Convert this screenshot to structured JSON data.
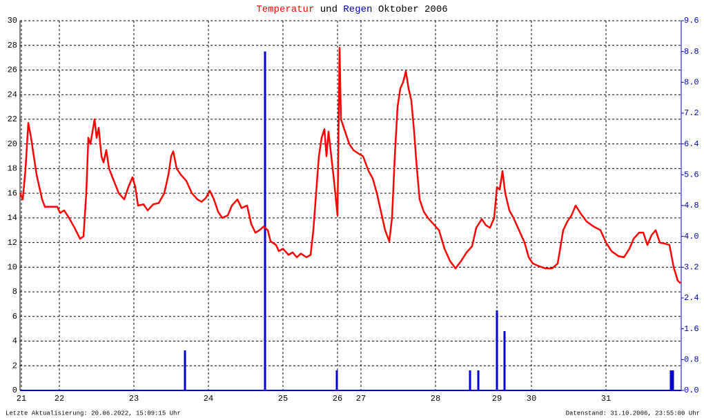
{
  "chart_data": {
    "type": "line_bar",
    "title_joiner": "und",
    "title_period": "Oktober 2006",
    "footer_left": "Letzte Aktualisierung: 20.06.2022, 15:09:15 Uhr",
    "footer_right": "Datenstand: 31.10.2006, 23:55:00 Uhr",
    "xlim": [
      0,
      239.5
    ],
    "xticks": [
      {
        "value": 0.5,
        "label": "21"
      },
      {
        "value": 14.25,
        "label": "22"
      },
      {
        "value": 41.25,
        "label": "23"
      },
      {
        "value": 68.25,
        "label": "24"
      },
      {
        "value": 95.25,
        "label": "25"
      },
      {
        "value": 115,
        "label": "26"
      },
      {
        "value": 123.5,
        "label": "27"
      },
      {
        "value": 150.5,
        "label": "28"
      },
      {
        "value": 172.75,
        "label": "29"
      },
      {
        "value": 185.25,
        "label": "30"
      },
      {
        "value": 212.25,
        "label": "31"
      }
    ],
    "ylim": [
      0,
      30
    ],
    "yticks": [
      0,
      2,
      4,
      6,
      8,
      10,
      12,
      14,
      16,
      18,
      20,
      22,
      24,
      26,
      28,
      30
    ],
    "y2lim": [
      0,
      9.6
    ],
    "y2ticks": [
      {
        "value": 0,
        "label": "0.0"
      },
      0.8,
      1.6,
      2.4,
      3.2,
      {
        "value": 4,
        "label": "4.0"
      },
      4.8,
      5.6,
      6.4,
      7.2,
      {
        "value": 8,
        "label": "8.0"
      },
      8.8,
      9.6
    ],
    "grid": true,
    "series": [
      {
        "name": "Temperatur",
        "color": "#ff0000",
        "kind": "line",
        "x": [
          0,
          1,
          2,
          3,
          4,
          5,
          6,
          7,
          8,
          9,
          11.5,
          13.5,
          14.5,
          16,
          17.75,
          19.75,
          21.75,
          23,
          24,
          24.75,
          25.5,
          26.25,
          27,
          27.75,
          28.5,
          29.5,
          30.25,
          31.25,
          32.25,
          34,
          35.75,
          37.75,
          39.25,
          40.75,
          41.75,
          42.75,
          44.75,
          46.25,
          48.25,
          50.25,
          52.25,
          53.75,
          54.75,
          55.5,
          56.75,
          58.25,
          60.25,
          62.25,
          64.25,
          65.75,
          67.25,
          68.75,
          70.25,
          71.75,
          73.25,
          75.25,
          76.75,
          78.75,
          80.25,
          82.25,
          83.75,
          85.25,
          86.75,
          88.25,
          89.75,
          90.75,
          92.75,
          93.75,
          95.25,
          97.25,
          98.75,
          100.25,
          101.75,
          103.75,
          105.25,
          106.25,
          107.25,
          108.25,
          109.25,
          110.25,
          111,
          111.75,
          112.75,
          113.75,
          115,
          115.75,
          116.25,
          117.75,
          119.25,
          120.75,
          122.75,
          124.25,
          126.25,
          127.75,
          129.25,
          130.75,
          132.25,
          133.75,
          134.75,
          135.75,
          136.75,
          137.75,
          138.75,
          139.75,
          140.75,
          141.75,
          142.75,
          143.75,
          144.75,
          146.25,
          147.75,
          149.75,
          151.75,
          153.75,
          155.75,
          157.75,
          159.75,
          161.75,
          163.75,
          165.25,
          167.25,
          168.75,
          170.25,
          171.75,
          172.75,
          173.75,
          174.75,
          175.75,
          177.25,
          178.75,
          180.75,
          182.75,
          184.25,
          185.75,
          187.75,
          190.25,
          192.75,
          194.75,
          196.75,
          198.25,
          199.75,
          201.25,
          203.25,
          205.25,
          207.75,
          210.25,
          212.25,
          214.25,
          216.75,
          218.75,
          220.75,
          222.25,
          224.25,
          225.75,
          227.25,
          228.75,
          230.25,
          231.75,
          233.75,
          235.25,
          236.75,
          238.25,
          239.25
        ],
        "values": [
          16,
          15.5,
          18,
          21.7,
          20.5,
          19,
          17.5,
          16.5,
          15.5,
          14.9,
          14.9,
          14.9,
          14.4,
          14.6,
          14,
          13.2,
          12.3,
          12.5,
          16,
          20.5,
          20,
          21,
          22,
          20.5,
          21.3,
          19,
          18.5,
          19.5,
          18,
          17,
          16,
          15.5,
          16.5,
          17.3,
          16.5,
          15,
          15.1,
          14.6,
          15.1,
          15.2,
          16,
          17.5,
          19,
          19.4,
          18,
          17.5,
          17,
          16,
          15.5,
          15.3,
          15.6,
          16.2,
          15.5,
          14.5,
          14,
          14.2,
          15,
          15.5,
          14.8,
          15,
          13.5,
          12.8,
          13,
          13.3,
          13,
          12.1,
          11.8,
          11.3,
          11.5,
          11,
          11.2,
          10.8,
          11.1,
          10.8,
          11,
          13,
          16,
          19,
          20.5,
          21.2,
          19,
          21,
          19,
          17,
          14.2,
          27.8,
          22,
          21,
          20,
          19.5,
          19.2,
          19,
          17.8,
          17.2,
          16,
          14.5,
          13,
          12.1,
          14,
          19,
          23,
          24.5,
          25,
          25.9,
          24.5,
          23.5,
          21,
          18,
          15.5,
          14.5,
          14,
          13.5,
          13,
          11.5,
          10.5,
          9.9,
          10.5,
          11.2,
          11.7,
          13.2,
          13.9,
          13.4,
          13.2,
          14,
          16.5,
          16.3,
          17.8,
          16,
          14.6,
          14,
          13,
          12,
          10.8,
          10.3,
          10.1,
          9.9,
          9.9,
          10.3,
          13,
          13.7,
          14.2,
          15,
          14.3,
          13.7,
          13.3,
          13,
          12,
          11.3,
          10.9,
          10.8,
          11.5,
          12.3,
          12.8,
          12.8,
          11.8,
          12.6,
          13,
          12,
          11.9,
          11.8,
          10,
          8.9,
          8.7
        ]
      },
      {
        "name": "Regen",
        "color": "#0000cc",
        "kind": "bar",
        "axis": "y2",
        "x": [
          59.75,
          88.75,
          114.75,
          163,
          166,
          172.75,
          175.5,
          235.75,
          236.5
        ],
        "values": [
          1.04,
          8.8,
          0.52,
          0.52,
          0.52,
          2.08,
          1.54,
          0.52,
          0.52
        ]
      }
    ]
  }
}
